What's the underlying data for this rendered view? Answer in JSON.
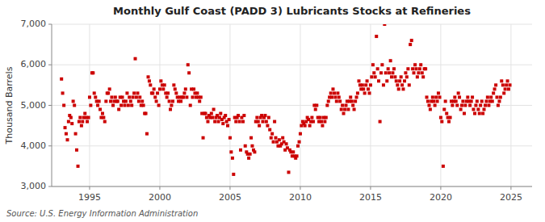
{
  "chart_data": {
    "type": "scatter",
    "title": "Monthly Gulf Coast (PADD 3) Lubricants Stocks at Refineries",
    "ylabel": "Thousand Barrels",
    "source": "Source: U.S. Energy Information Administration",
    "color": "#cc0000",
    "marker": "square",
    "grid": true,
    "xlim": [
      1992.3,
      2026.5
    ],
    "xticks": [
      1995,
      2000,
      2005,
      2010,
      2015,
      2020,
      2025
    ],
    "ylim": [
      3000,
      7000
    ],
    "yticks": [
      {
        "value": 3000,
        "label": "3,000"
      },
      {
        "value": 4000,
        "label": "4,000"
      },
      {
        "value": 5000,
        "label": "5,000"
      },
      {
        "value": 6000,
        "label": "6,000"
      },
      {
        "value": 7000,
        "label": "7,000"
      }
    ],
    "x": [
      1993.0,
      1993.08,
      1993.17,
      1993.25,
      1993.33,
      1993.42,
      1993.5,
      1993.58,
      1993.67,
      1993.75,
      1993.83,
      1993.92,
      1994.0,
      1994.08,
      1994.17,
      1994.25,
      1994.33,
      1994.42,
      1994.5,
      1994.58,
      1994.67,
      1994.75,
      1994.83,
      1994.92,
      1995.0,
      1995.08,
      1995.17,
      1995.25,
      1995.33,
      1995.42,
      1995.5,
      1995.58,
      1995.67,
      1995.75,
      1995.83,
      1995.92,
      1996.0,
      1996.08,
      1996.17,
      1996.25,
      1996.33,
      1996.42,
      1996.5,
      1996.58,
      1996.67,
      1996.75,
      1996.83,
      1996.92,
      1997.0,
      1997.08,
      1997.17,
      1997.25,
      1997.33,
      1997.42,
      1997.5,
      1997.58,
      1997.67,
      1997.75,
      1997.83,
      1997.92,
      1998.0,
      1998.08,
      1998.17,
      1998.25,
      1998.33,
      1998.42,
      1998.5,
      1998.58,
      1998.67,
      1998.75,
      1998.83,
      1998.92,
      1999.0,
      1999.08,
      1999.17,
      1999.25,
      1999.33,
      1999.42,
      1999.5,
      1999.58,
      1999.67,
      1999.75,
      1999.83,
      1999.92,
      2000.0,
      2000.08,
      2000.17,
      2000.25,
      2000.33,
      2000.42,
      2000.5,
      2000.58,
      2000.67,
      2000.75,
      2000.83,
      2000.92,
      2001.0,
      2001.08,
      2001.17,
      2001.25,
      2001.33,
      2001.42,
      2001.5,
      2001.58,
      2001.67,
      2001.75,
      2001.83,
      2001.92,
      2002.0,
      2002.08,
      2002.17,
      2002.25,
      2002.33,
      2002.42,
      2002.5,
      2002.58,
      2002.67,
      2002.75,
      2002.83,
      2002.92,
      2003.0,
      2003.08,
      2003.17,
      2003.25,
      2003.33,
      2003.42,
      2003.5,
      2003.58,
      2003.67,
      2003.75,
      2003.83,
      2003.92,
      2004.0,
      2004.08,
      2004.17,
      2004.25,
      2004.33,
      2004.42,
      2004.5,
      2004.58,
      2004.67,
      2004.75,
      2004.83,
      2004.92,
      2005.0,
      2005.08,
      2005.17,
      2005.25,
      2005.33,
      2005.42,
      2005.5,
      2005.58,
      2005.67,
      2005.75,
      2005.83,
      2005.92,
      2006.0,
      2006.08,
      2006.17,
      2006.25,
      2006.33,
      2006.42,
      2006.5,
      2006.58,
      2006.67,
      2006.75,
      2006.83,
      2006.92,
      2007.0,
      2007.08,
      2007.17,
      2007.25,
      2007.33,
      2007.42,
      2007.5,
      2007.58,
      2007.67,
      2007.75,
      2007.83,
      2007.92,
      2008.0,
      2008.08,
      2008.17,
      2008.25,
      2008.33,
      2008.42,
      2008.5,
      2008.58,
      2008.67,
      2008.75,
      2008.83,
      2008.92,
      2009.0,
      2009.08,
      2009.17,
      2009.25,
      2009.33,
      2009.42,
      2009.5,
      2009.58,
      2009.67,
      2009.75,
      2009.83,
      2009.92,
      2010.0,
      2010.08,
      2010.17,
      2010.25,
      2010.33,
      2010.42,
      2010.5,
      2010.58,
      2010.67,
      2010.75,
      2010.83,
      2010.92,
      2011.0,
      2011.08,
      2011.17,
      2011.25,
      2011.33,
      2011.42,
      2011.5,
      2011.58,
      2011.67,
      2011.75,
      2011.83,
      2011.92,
      2012.0,
      2012.08,
      2012.17,
      2012.25,
      2012.33,
      2012.42,
      2012.5,
      2012.58,
      2012.67,
      2012.75,
      2012.83,
      2012.92,
      2013.0,
      2013.08,
      2013.17,
      2013.25,
      2013.33,
      2013.42,
      2013.5,
      2013.58,
      2013.67,
      2013.75,
      2013.83,
      2013.92,
      2014.0,
      2014.08,
      2014.17,
      2014.25,
      2014.33,
      2014.42,
      2014.5,
      2014.58,
      2014.67,
      2014.75,
      2014.83,
      2014.92,
      2015.0,
      2015.08,
      2015.17,
      2015.25,
      2015.33,
      2015.42,
      2015.5,
      2015.58,
      2015.67,
      2015.75,
      2015.83,
      2015.92,
      2016.0,
      2016.08,
      2016.17,
      2016.25,
      2016.33,
      2016.42,
      2016.5,
      2016.58,
      2016.67,
      2016.75,
      2016.83,
      2016.92,
      2017.0,
      2017.08,
      2017.17,
      2017.25,
      2017.33,
      2017.42,
      2017.5,
      2017.58,
      2017.67,
      2017.75,
      2017.83,
      2017.92,
      2018.0,
      2018.08,
      2018.17,
      2018.25,
      2018.33,
      2018.42,
      2018.5,
      2018.58,
      2018.67,
      2018.75,
      2018.83,
      2018.92,
      2019.0,
      2019.08,
      2019.17,
      2019.25,
      2019.33,
      2019.42,
      2019.5,
      2019.58,
      2019.67,
      2019.75,
      2019.83,
      2019.92,
      2020.0,
      2020.08,
      2020.17,
      2020.25,
      2020.33,
      2020.42,
      2020.5,
      2020.58,
      2020.67,
      2020.75,
      2020.83,
      2020.92,
      2021.0,
      2021.08,
      2021.17,
      2021.25,
      2021.33,
      2021.42,
      2021.5,
      2021.58,
      2021.67,
      2021.75,
      2021.83,
      2021.92,
      2022.0,
      2022.08,
      2022.17,
      2022.25,
      2022.33,
      2022.42,
      2022.5,
      2022.58,
      2022.67,
      2022.75,
      2022.83,
      2022.92,
      2023.0,
      2023.08,
      2023.17,
      2023.25,
      2023.33,
      2023.42,
      2023.5,
      2023.58,
      2023.67,
      2023.75,
      2023.83,
      2023.92,
      2024.0,
      2024.08,
      2024.17,
      2024.25,
      2024.33,
      2024.42,
      2024.5,
      2024.58,
      2024.67,
      2024.75,
      2024.83,
      2024.92
    ],
    "values": [
      5650,
      5300,
      5000,
      4450,
      4300,
      4150,
      4600,
      4750,
      4700,
      4550,
      5100,
      5000,
      4300,
      3900,
      3500,
      4600,
      4700,
      4500,
      4600,
      4700,
      4800,
      4700,
      4600,
      4700,
      5200,
      5000,
      5800,
      5800,
      5300,
      5200,
      5100,
      5000,
      5100,
      4900,
      4700,
      4800,
      4700,
      4600,
      5100,
      5300,
      5300,
      5400,
      5100,
      5200,
      5000,
      5100,
      5200,
      5100,
      5100,
      4900,
      5200,
      5000,
      5200,
      5100,
      5000,
      5100,
      5300,
      5000,
      5200,
      5100,
      5000,
      5200,
      5300,
      6150,
      5200,
      5300,
      5100,
      5200,
      5000,
      5100,
      5000,
      4800,
      4800,
      4300,
      5700,
      5600,
      5500,
      5300,
      5300,
      5400,
      5200,
      5100,
      5300,
      5000,
      5400,
      5600,
      5500,
      5400,
      5500,
      5300,
      5200,
      5300,
      5100,
      4900,
      5000,
      5100,
      5500,
      5400,
      5300,
      5200,
      5100,
      5200,
      5100,
      5200,
      5200,
      5300,
      5400,
      5200,
      6000,
      5800,
      5000,
      5400,
      5200,
      5400,
      5300,
      5200,
      5300,
      5200,
      5100,
      5200,
      4800,
      4200,
      4800,
      4800,
      4700,
      4600,
      4750,
      4700,
      4800,
      4700,
      4900,
      4600,
      4700,
      4750,
      4600,
      4700,
      4800,
      4650,
      4550,
      4700,
      4750,
      4600,
      4500,
      4650,
      4200,
      3850,
      3700,
      3300,
      4700,
      4600,
      4700,
      4750,
      4600,
      3900,
      4700,
      4600,
      4750,
      4000,
      3850,
      3800,
      3700,
      3800,
      4200,
      4000,
      3900,
      3850,
      4600,
      4700,
      4600,
      4500,
      4700,
      4750,
      4600,
      4700,
      4750,
      4600,
      4500,
      4700,
      4400,
      4200,
      4300,
      4100,
      4600,
      4200,
      4100,
      4000,
      4150,
      4000,
      4050,
      4200,
      4100,
      3900,
      4050,
      3950,
      3350,
      3900,
      3850,
      3750,
      3850,
      3750,
      3700,
      3750,
      4000,
      4100,
      4300,
      4500,
      4600,
      4550,
      4500,
      4600,
      4700,
      4650,
      4500,
      4600,
      4700,
      4600,
      5000,
      4900,
      5000,
      4700,
      4600,
      4700,
      4600,
      4500,
      4700,
      4600,
      4700,
      5000,
      5100,
      5200,
      5300,
      5200,
      5400,
      5300,
      5200,
      5100,
      5300,
      5200,
      5100,
      4900,
      5000,
      4800,
      4900,
      5000,
      5100,
      4900,
      5100,
      5200,
      5100,
      5000,
      4900,
      5100,
      5200,
      5300,
      5600,
      5500,
      5400,
      5500,
      5400,
      5300,
      5500,
      5600,
      5400,
      5300,
      5500,
      5700,
      6000,
      5800,
      5700,
      6700,
      5900,
      5600,
      4600,
      5800,
      6000,
      5500,
      7000,
      5800,
      5600,
      5900,
      5800,
      6100,
      5700,
      5800,
      5900,
      5700,
      5600,
      5500,
      5400,
      5600,
      5700,
      5500,
      5400,
      5600,
      5800,
      5700,
      5900,
      5500,
      6500,
      6600,
      5900,
      5800,
      6000,
      5900,
      5700,
      5800,
      5900,
      6000,
      5800,
      5700,
      5900,
      5900,
      5200,
      5100,
      5000,
      4900,
      5100,
      5200,
      5100,
      5000,
      5200,
      5100,
      5300,
      5200,
      4700,
      4600,
      3500,
      4900,
      5100,
      4800,
      4700,
      4600,
      4700,
      5100,
      5000,
      5100,
      5200,
      5100,
      5000,
      5300,
      5200,
      4900,
      5000,
      5100,
      4800,
      5000,
      5100,
      5200,
      5100,
      5000,
      5100,
      5200,
      4900,
      4800,
      5000,
      5100,
      4900,
      4800,
      5000,
      5100,
      4800,
      4900,
      5000,
      5100,
      5200,
      5000,
      5100,
      5200,
      5100,
      5300,
      5400,
      5500,
      5200,
      5000,
      5100,
      5200,
      5600,
      5500,
      5300,
      5400,
      5500,
      5600,
      5400,
      5500
    ]
  }
}
